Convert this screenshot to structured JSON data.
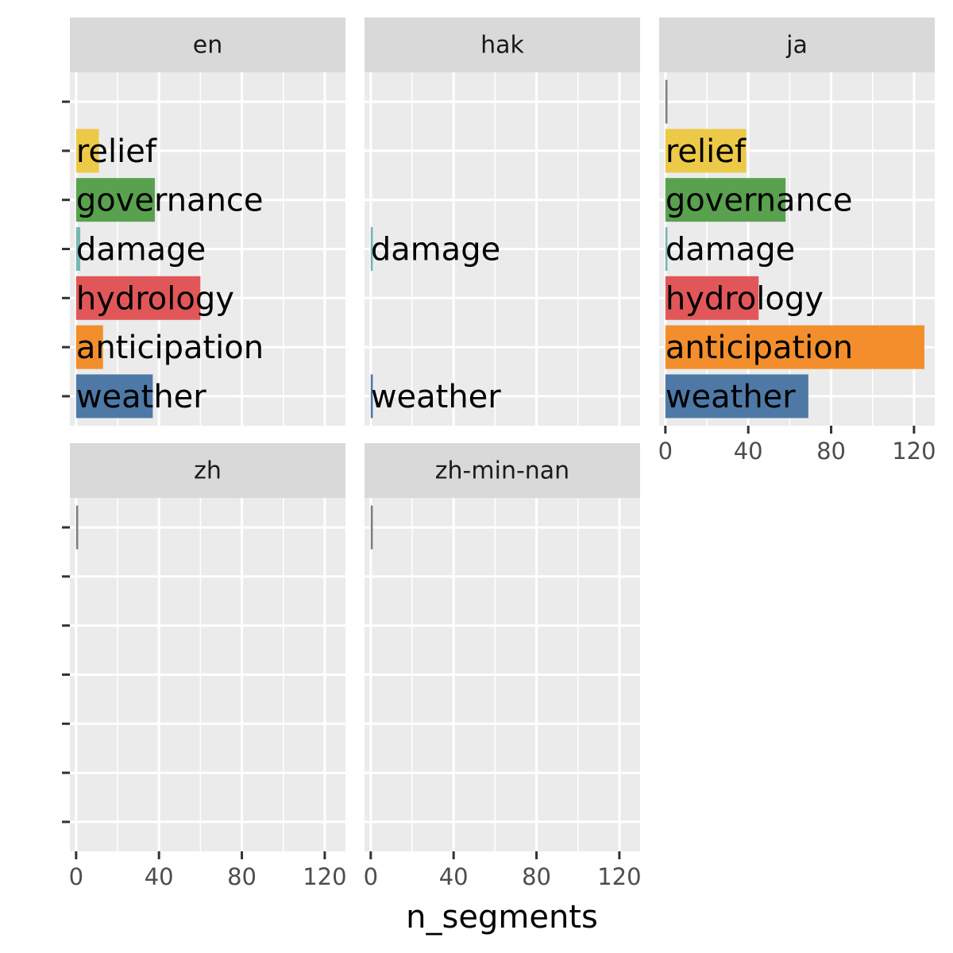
{
  "chart_data": {
    "type": "bar",
    "orientation": "horizontal",
    "facet_layout": "wrap, 3 columns",
    "xlabel": "n_segments",
    "xlim": [
      -3,
      130
    ],
    "x_ticks": [
      0,
      40,
      80,
      120
    ],
    "grid": true,
    "categories": [
      "weather",
      "anticipation",
      "hydrology",
      "damage",
      "governance",
      "relief",
      ""
    ],
    "category_colors": {
      "weather": "#4e79a7",
      "anticipation": "#f28e2b",
      "hydrology": "#e15759",
      "damage": "#76b7b2",
      "governance": "#59a14f",
      "relief": "#edc948",
      "": "#7f7f7f"
    },
    "facets": [
      {
        "name": "en",
        "values": {
          "weather": 37,
          "anticipation": 13,
          "hydrology": 60,
          "damage": 2,
          "governance": 38,
          "relief": 11
        }
      },
      {
        "name": "hak",
        "values": {
          "weather": 1,
          "damage": 1
        }
      },
      {
        "name": "ja",
        "values": {
          "weather": 69,
          "anticipation": 125,
          "hydrology": 45,
          "damage": 1,
          "governance": 58,
          "relief": 39,
          "": 1
        }
      },
      {
        "name": "zh",
        "values": {
          "": 1
        }
      },
      {
        "name": "zh-min-nan",
        "values": {
          "": 1
        }
      }
    ]
  }
}
